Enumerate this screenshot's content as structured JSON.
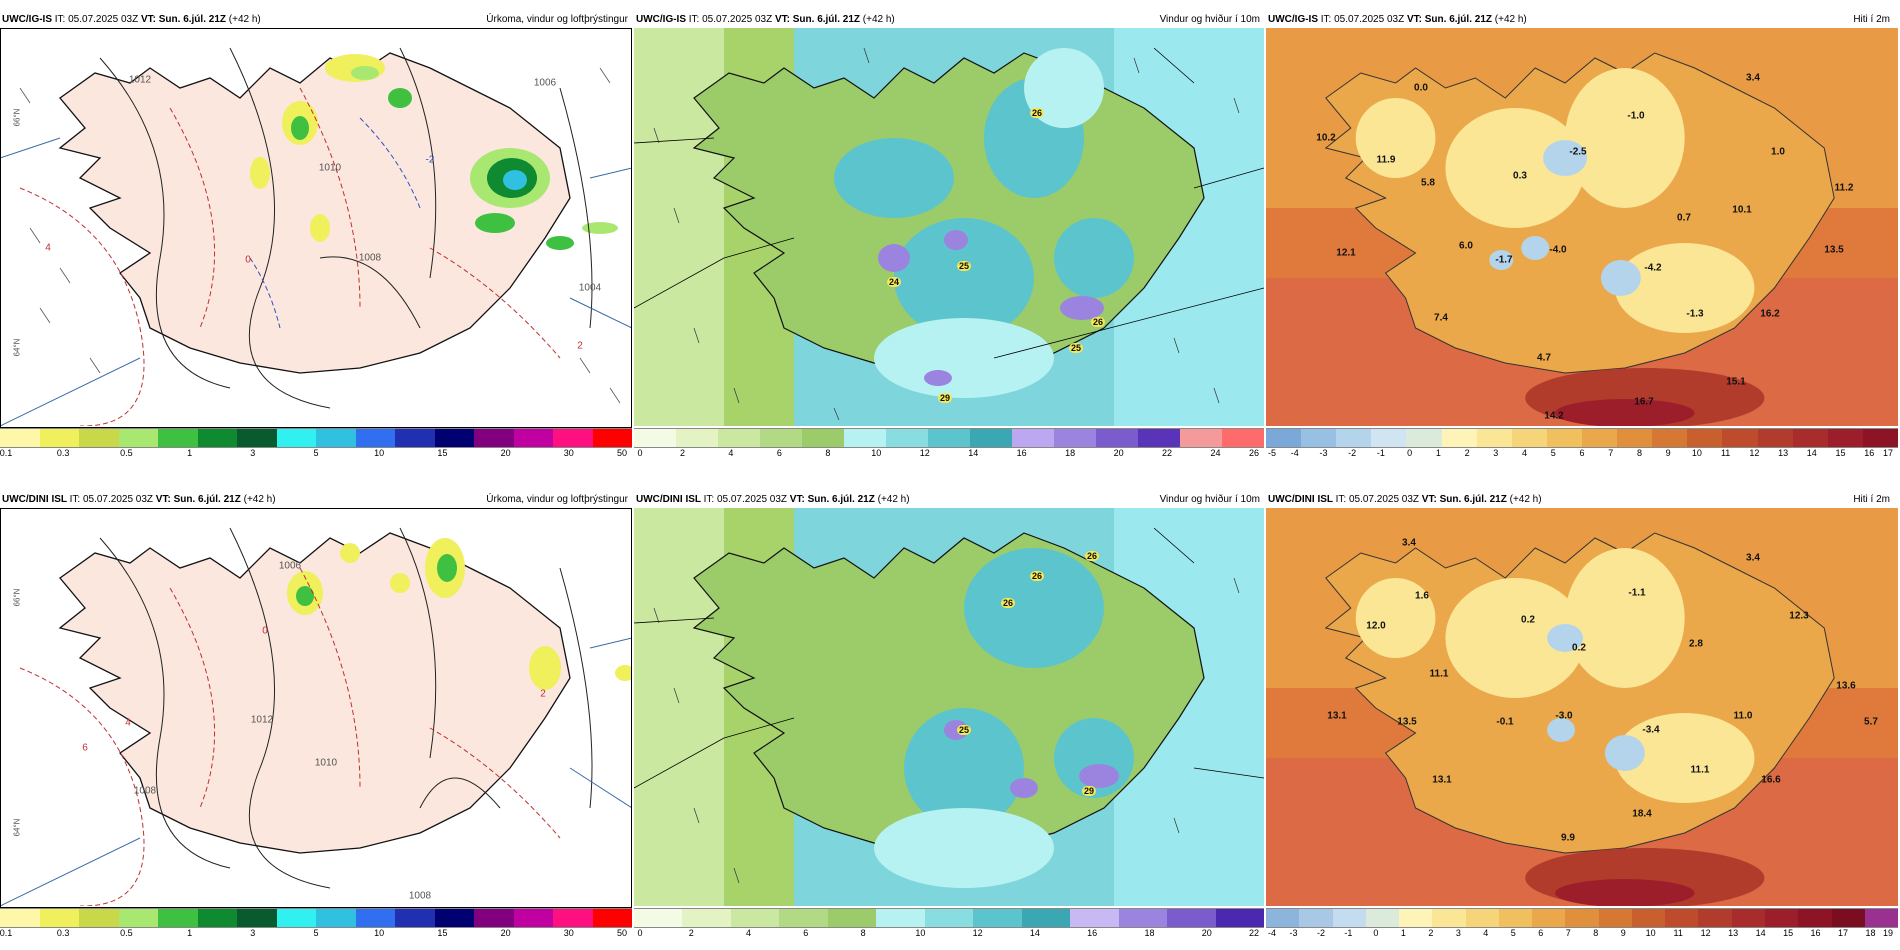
{
  "header_text": {
    "it_prefix": "IT:",
    "vt_prefix": "VT:",
    "run_time": "05.07.2025 03Z",
    "valid_time": "Sun. 6.júl. 21Z",
    "lead": "(+42 h)"
  },
  "titles": {
    "precip": "Úrkoma, vindur og loftþrýstingur",
    "wind": "Vindur og hviður í 10m",
    "temp": "Hiti í 2m"
  },
  "models": {
    "top": "UWC/IG-IS",
    "bottom": "UWC/DINI ISL"
  },
  "legends": {
    "precip": {
      "colors": [
        "#fff7a8",
        "#f0ef5c",
        "#c8d848",
        "#a8e870",
        "#3fc040",
        "#108a30",
        "#0a5a30",
        "#30f0f0",
        "#30c0e0",
        "#3070f0",
        "#2030b0",
        "#000070",
        "#800080",
        "#c000a0",
        "#ff1080",
        "#ff0000"
      ],
      "labels": [
        "0.1",
        "0.3",
        "0.5",
        "1",
        "3",
        "5",
        "10",
        "15",
        "20",
        "30",
        "50"
      ]
    },
    "wind_top": {
      "colors": [
        "#f4fbe4",
        "#e3f3c4",
        "#cbe8a0",
        "#b2da84",
        "#9ccb6a",
        "#b7f2f2",
        "#88dde0",
        "#5cc4cc",
        "#3aa7b2",
        "#bba8f0",
        "#9a84e0",
        "#7a5ccc",
        "#5a34b8",
        "#f49a9a",
        "#ff6b6b"
      ],
      "labels": [
        "0",
        "2",
        "4",
        "6",
        "8",
        "10",
        "12",
        "14",
        "16",
        "18",
        "20",
        "22",
        "24",
        "26"
      ]
    },
    "wind_bottom": {
      "colors": [
        "#f4fbe4",
        "#e3f3c4",
        "#cbe8a0",
        "#b2da84",
        "#9ccb6a",
        "#b7f2f2",
        "#88dde0",
        "#5cc4cc",
        "#3aa7b2",
        "#c8b8f4",
        "#9a84e0",
        "#7a5ccc",
        "#4a28b0"
      ],
      "labels": [
        "0",
        "2",
        "4",
        "6",
        "8",
        "10",
        "12",
        "14",
        "16",
        "18",
        "20",
        "22"
      ]
    },
    "temp_top": {
      "colors": [
        "#7aa8d8",
        "#98c0e4",
        "#b4d4ec",
        "#d0e4f2",
        "#dceadc",
        "#fff4b8",
        "#fbe696",
        "#f6d47a",
        "#f0c05e",
        "#eaa84a",
        "#e0903c",
        "#d47834",
        "#c8602e",
        "#be4c2c",
        "#b23c2c",
        "#a82c2c",
        "#9c1e2a",
        "#8c1424"
      ],
      "labels": [
        "-5",
        "-4",
        "-3",
        "-2",
        "-1",
        "0",
        "1",
        "2",
        "3",
        "4",
        "5",
        "6",
        "7",
        "8",
        "9",
        "10",
        "11",
        "12",
        "13",
        "14",
        "15",
        "16",
        "17"
      ]
    },
    "temp_bottom": {
      "colors": [
        "#8cb4dc",
        "#a8c8e6",
        "#c4dcf0",
        "#dceadc",
        "#fff4b8",
        "#fbe696",
        "#f6d47a",
        "#f0c05e",
        "#eaa84a",
        "#e0903c",
        "#d47834",
        "#c8602e",
        "#be4c2c",
        "#b23c2c",
        "#a82c2c",
        "#9c1e2a",
        "#8c1424",
        "#7a0e20",
        "#9a3090"
      ],
      "labels": [
        "-4",
        "-3",
        "-2",
        "-1",
        "0",
        "1",
        "2",
        "3",
        "4",
        "5",
        "6",
        "7",
        "8",
        "9",
        "10",
        "11",
        "12",
        "13",
        "14",
        "15",
        "16",
        "17",
        "18",
        "19"
      ]
    }
  },
  "station_values": {
    "temp_top": [
      "0.0",
      "3.4",
      "10.2",
      "11.9",
      "5.8",
      "0.3",
      "-2.5",
      "-1.0",
      "1.0",
      "11.2",
      "10.1",
      "0.7",
      "12.1",
      "6.0",
      "-1.7",
      "-4.0",
      "-4.2",
      "13.5",
      "7.4",
      "-1.3",
      "16.2",
      "4.7",
      "15.1",
      "14.2",
      "16.7"
    ],
    "temp_bottom": [
      "3.4",
      "3.4",
      "12.0",
      "1.6",
      "0.2",
      "-1.1",
      "12.3",
      "0.2",
      "2.8",
      "11.1",
      "13.6",
      "13.1",
      "13.5",
      "-0.1",
      "-3.0",
      "-3.4",
      "11.0",
      "5.7",
      "13.1",
      "11.1",
      "16.6",
      "18.4",
      "9.9"
    ],
    "wind_top": [
      "26",
      "25",
      "24",
      "26",
      "25",
      "29"
    ],
    "wind_bottom": [
      "26",
      "26",
      "26",
      "25",
      "29"
    ]
  },
  "map_contours": {
    "pressure_labels": [
      "1012",
      "1010",
      "1008",
      "1006",
      "1004",
      "1006",
      "1010",
      "1012",
      "1008",
      "1008"
    ],
    "dashed_labels": [
      "4",
      "2",
      "0",
      "-2",
      "4",
      "6",
      "2"
    ],
    "lat_labels": [
      "66°N",
      "64°N"
    ]
  },
  "colors": {
    "land_precip": "#fbe7dd",
    "sea_precip": "#ffffff",
    "land_wind": "#a8d26a",
    "sea_wind": "#7ed6dc",
    "land_temp": "#f0c05e",
    "sea_temp": "#e07a3c"
  }
}
